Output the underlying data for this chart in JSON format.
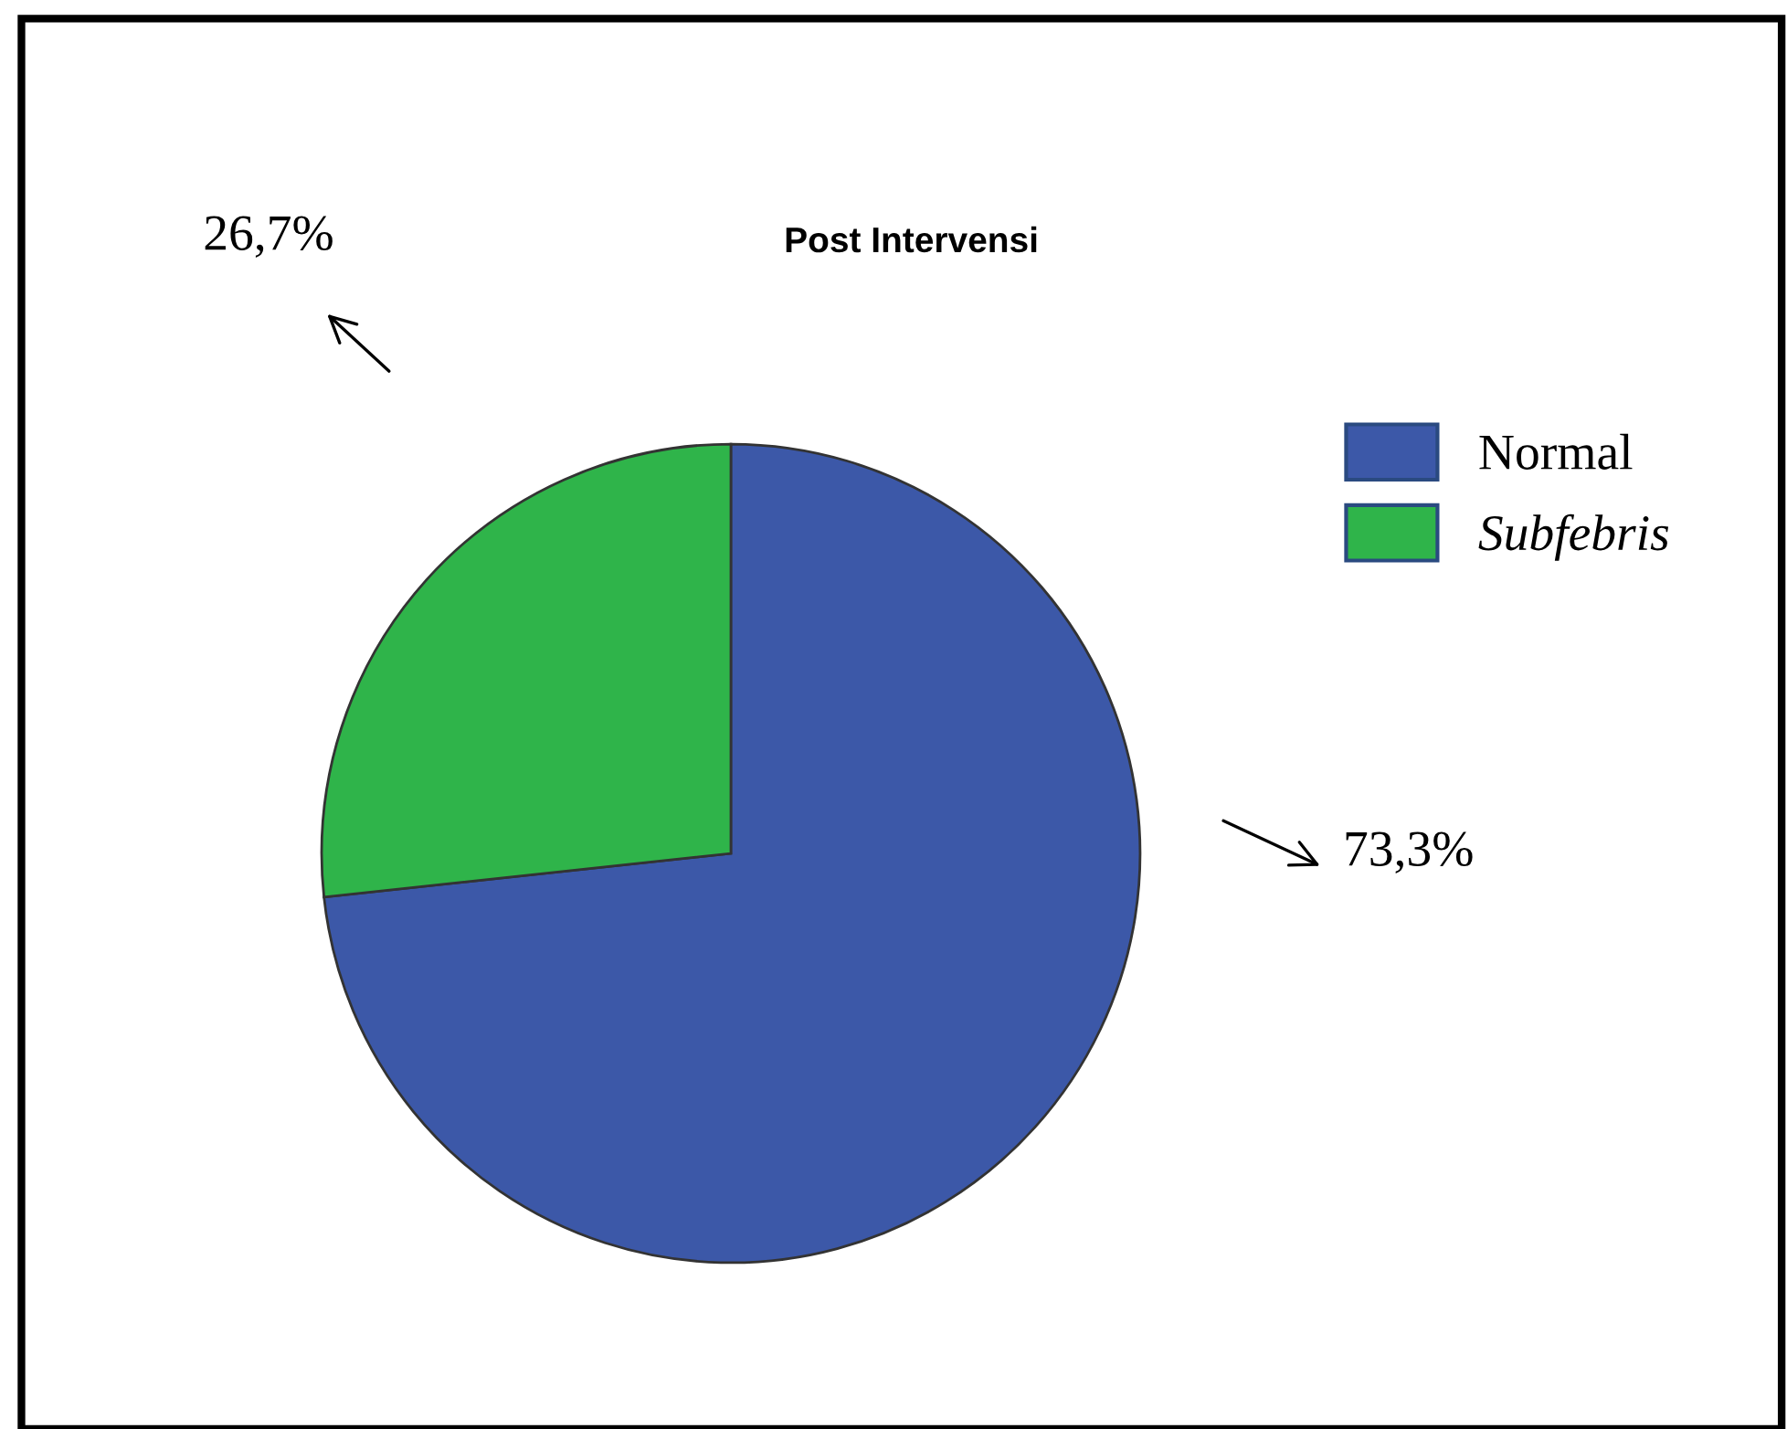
{
  "chart_data": {
    "type": "pie",
    "title": "Post Intervensi",
    "categories": [
      "Normal",
      "Subfebris"
    ],
    "values": [
      73.3,
      26.7
    ],
    "colors": [
      "#3c58a8",
      "#2fb44a"
    ],
    "value_labels": [
      "73,3%",
      "26,7%"
    ],
    "legend": "top right"
  }
}
